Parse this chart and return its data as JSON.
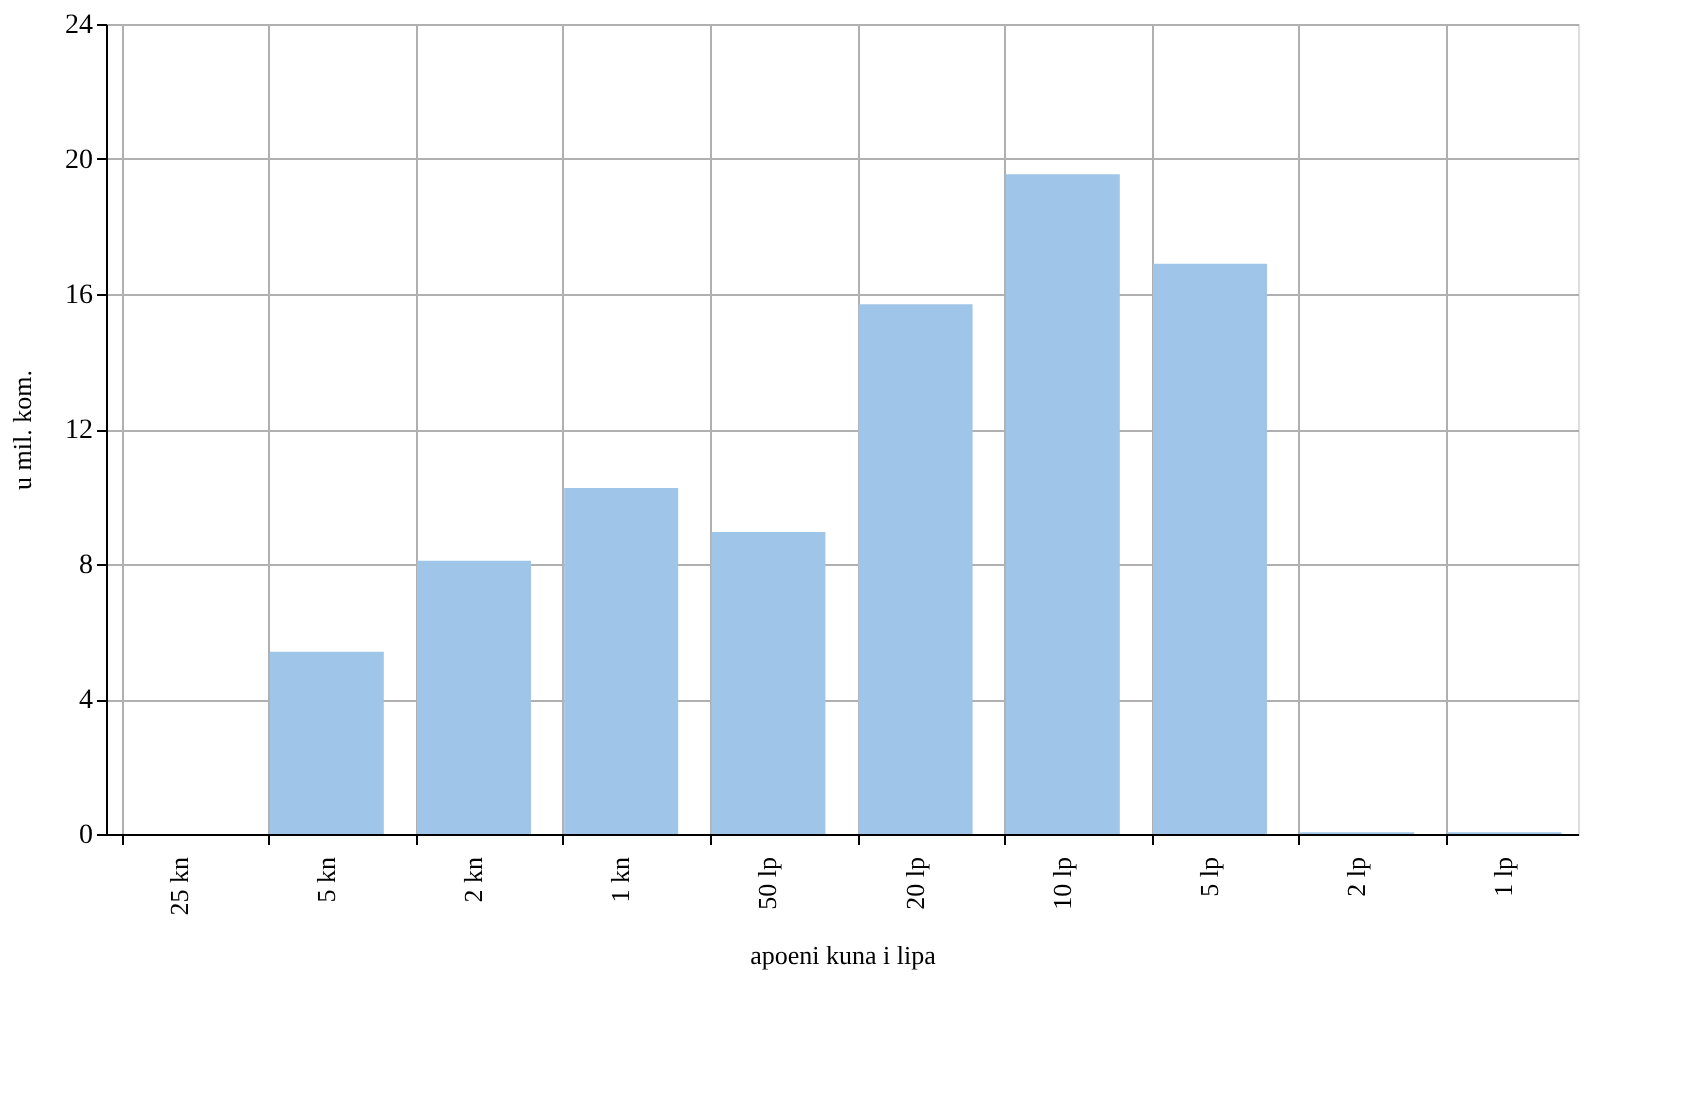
{
  "chart_data": {
    "type": "bar",
    "xlabel": "apoeni kuna i lipa",
    "ylabel": "u mil. kom.",
    "categories": [
      "25 kn",
      "5 kn",
      "2 kn",
      "1 kn",
      "50 lp",
      "20 lp",
      "10 lp",
      "5 lp",
      "2 lp",
      "1 lp"
    ],
    "values": [
      0,
      5.4,
      8.1,
      10.25,
      8.95,
      15.7,
      19.55,
      16.9,
      0.05,
      0.05
    ],
    "color": "#9fc5e8",
    "ylim": [
      0,
      24
    ],
    "yticks": [
      0,
      4,
      8,
      12,
      16,
      20,
      24
    ],
    "grid": true
  }
}
